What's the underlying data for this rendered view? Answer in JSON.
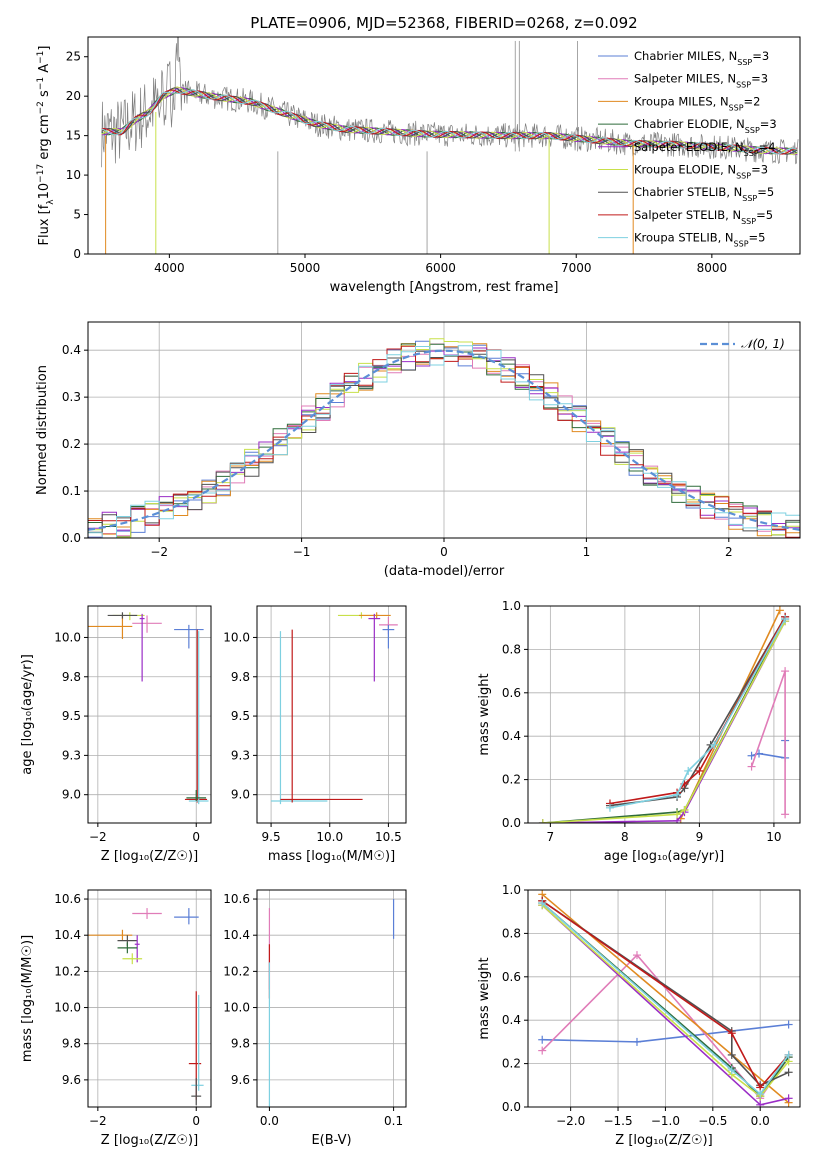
{
  "figure_title": "PLATE=0906, MJD=52368, FIBERID=0268, z=0.092",
  "colors": {
    "Chabrier MILES": "#5b7fd6",
    "Salpeter MILES": "#e07cb8",
    "Kroupa MILES": "#e08a20",
    "Chabrier ELODIE": "#2e6b3a",
    "Salpeter ELODIE": "#9a2dc6",
    "Kroupa ELODIE": "#c8e04a",
    "Chabrier STELIB": "#505050",
    "Salpeter STELIB": "#c01a1a",
    "Kroupa STELIB": "#7ed0e0",
    "normal": "#5b8fd6",
    "grid": "#b0b0b0"
  },
  "legend_spectrum": [
    {
      "name": "Chabrier MILES",
      "label": "Chabrier MILES, N",
      "n": "3"
    },
    {
      "name": "Salpeter MILES",
      "label": "Salpeter MILES, N",
      "n": "3"
    },
    {
      "name": "Kroupa MILES",
      "label": "Kroupa MILES, N",
      "n": "2"
    },
    {
      "name": "Chabrier ELODIE",
      "label": "Chabrier ELODIE, N",
      "n": "3"
    },
    {
      "name": "Salpeter ELODIE",
      "label": "Salpeter ELODIE, N",
      "n": "4"
    },
    {
      "name": "Kroupa ELODIE",
      "label": "Kroupa ELODIE, N",
      "n": "3"
    },
    {
      "name": "Chabrier STELIB",
      "label": "Chabrier STELIB, N",
      "n": "5"
    },
    {
      "name": "Salpeter STELIB",
      "label": "Salpeter STELIB, N",
      "n": "5"
    },
    {
      "name": "Kroupa STELIB",
      "label": "Kroupa STELIB, N",
      "n": "5"
    }
  ],
  "legend_ssp_sub": "SSP",
  "legend_residual": "𝒩(0, 1)",
  "chart_data": [
    {
      "id": "spectrum",
      "type": "line",
      "xlabel": "wavelength [Angstrom, rest frame]",
      "ylabel_parts": [
        "Flux [f",
        "λ",
        "10",
        "−17",
        " erg cm",
        "−2",
        " s",
        "−1",
        " A",
        "−1",
        "]"
      ],
      "xlim": [
        3400,
        8650
      ],
      "ylim": [
        0,
        27.5
      ],
      "xticks": [
        4000,
        5000,
        6000,
        7000,
        8000
      ],
      "yticks": [
        0,
        5,
        10,
        15,
        20,
        25
      ],
      "grid": false,
      "legend_position": "top-right",
      "continuum": [
        [
          3500,
          15.5
        ],
        [
          3650,
          15.5
        ],
        [
          3750,
          17
        ],
        [
          3850,
          18
        ],
        [
          3950,
          20
        ],
        [
          4050,
          20.8
        ],
        [
          4300,
          20
        ],
        [
          4600,
          19.3
        ],
        [
          4900,
          17.5
        ],
        [
          5100,
          16.4
        ],
        [
          5300,
          15.8
        ],
        [
          5600,
          15.5
        ],
        [
          5900,
          15.2
        ],
        [
          6200,
          15.1
        ],
        [
          6500,
          15.0
        ],
        [
          6800,
          15.0
        ],
        [
          7100,
          14.5
        ],
        [
          7400,
          14.0
        ],
        [
          7700,
          13.9
        ],
        [
          8100,
          13.5
        ],
        [
          8400,
          13.1
        ],
        [
          8650,
          13.0
        ]
      ]
    },
    {
      "id": "residuals",
      "type": "step",
      "xlabel": "(data-model)/error",
      "ylabel": "Normed distribution",
      "xlim": [
        -2.5,
        2.5
      ],
      "ylim": [
        0,
        0.46
      ],
      "xticks": [
        -2,
        -1,
        0,
        1,
        2
      ],
      "yticks": [
        0.0,
        0.1,
        0.2,
        0.3,
        0.4
      ],
      "grid": true,
      "legend_position": "top-right",
      "normal": {
        "mu": 0,
        "sigma": 1
      }
    },
    {
      "id": "age_vs_Z",
      "type": "errorbar",
      "xlabel": "Z [log₁₀(Z/Z☉)]",
      "ylabel": "age  [log₁₀(age/yr)]",
      "xlim": [
        -2.2,
        0.3
      ],
      "ylim": [
        8.82,
        10.2
      ],
      "xticks": [
        -2,
        0
      ],
      "yticks": [
        9.0,
        9.25,
        9.5,
        9.75,
        10.0
      ],
      "grid": true,
      "points": [
        {
          "s": "Kroupa MILES",
          "x": -1.5,
          "y": 10.07,
          "xe": [
            0.7,
            0.2
          ],
          "ye": [
            0.08,
            0.07
          ]
        },
        {
          "s": "Kroupa ELODIE",
          "x": -1.35,
          "y": 10.14,
          "xe": [
            0.35,
            0.3
          ],
          "ye": [
            0.03,
            0.02
          ]
        },
        {
          "s": "Chabrier STELIB",
          "x": -1.5,
          "y": 10.14,
          "xe": [
            0.3,
            0.3
          ],
          "ye": [
            0.02,
            0.02
          ]
        },
        {
          "s": "Salpeter MILES",
          "x": -1.0,
          "y": 10.09,
          "xe": [
            0.3,
            0.3
          ],
          "ye": [
            0.06,
            0.05
          ]
        },
        {
          "s": "Salpeter ELODIE",
          "x": -1.1,
          "y": 10.12,
          "xe": [
            0.05,
            0.05
          ],
          "ye": [
            0.4,
            0.03
          ]
        },
        {
          "s": "Chabrier MILES",
          "x": -0.15,
          "y": 10.05,
          "xe": [
            0.3,
            0.3
          ],
          "ye": [
            0.12,
            0.03
          ]
        },
        {
          "s": "Salpeter STELIB",
          "x": 0.02,
          "y": 8.97,
          "xe": [
            0.25,
            0.2
          ],
          "ye": [
            0.02,
            1.08
          ]
        },
        {
          "s": "Kroupa STELIB",
          "x": 0.05,
          "y": 8.96,
          "xe": [
            0.2,
            0.2
          ],
          "ye": [
            0.02,
            1.08
          ]
        },
        {
          "s": "Chabrier ELODIE",
          "x": 0.0,
          "y": 8.98,
          "xe": [
            0.2,
            0.2
          ],
          "ye": [
            0.02,
            0.05
          ]
        }
      ]
    },
    {
      "id": "age_vs_mass",
      "type": "errorbar",
      "xlabel": "mass [log₁₀(M/M☉)]",
      "ylabel": "",
      "xlim": [
        9.38,
        10.65
      ],
      "ylim": [
        8.82,
        10.2
      ],
      "xticks": [
        9.5,
        10.0,
        10.5
      ],
      "yticks": [
        9.0,
        9.25,
        9.5,
        9.75,
        10.0
      ],
      "grid": true,
      "points": [
        {
          "s": "Kroupa STELIB",
          "x": 9.58,
          "y": 8.96,
          "xe": [
            0.08,
            0.4
          ],
          "ye": [
            0.02,
            1.08
          ]
        },
        {
          "s": "Salpeter STELIB",
          "x": 9.68,
          "y": 8.97,
          "xe": [
            0.1,
            0.6
          ],
          "ye": [
            0.02,
            1.08
          ]
        },
        {
          "s": "Kroupa ELODIE",
          "x": 10.27,
          "y": 10.14,
          "xe": [
            0.2,
            0.15
          ],
          "ye": [
            0.02,
            0.02
          ]
        },
        {
          "s": "Kroupa MILES",
          "x": 10.4,
          "y": 10.14,
          "xe": [
            0.15,
            0.12
          ],
          "ye": [
            0.02,
            0.02
          ]
        },
        {
          "s": "Salpeter ELODIE",
          "x": 10.38,
          "y": 10.12,
          "xe": [
            0.05,
            0.05
          ],
          "ye": [
            0.4,
            0.03
          ]
        },
        {
          "s": "Salpeter MILES",
          "x": 10.5,
          "y": 10.08,
          "xe": [
            0.08,
            0.08
          ],
          "ye": [
            0.06,
            0.05
          ]
        },
        {
          "s": "Chabrier MILES",
          "x": 10.5,
          "y": 10.05,
          "xe": [
            0.05,
            0.05
          ],
          "ye": [
            0.12,
            0.03
          ]
        }
      ]
    },
    {
      "id": "mass_weight_vs_age",
      "type": "line",
      "xlabel": "age  [log₁₀(age/yr)]",
      "ylabel": "mass weight",
      "xlim": [
        6.7,
        10.35
      ],
      "ylim": [
        0,
        1.0
      ],
      "xticks": [
        7,
        8,
        9,
        10
      ],
      "yticks": [
        0.0,
        0.2,
        0.4,
        0.6,
        0.8,
        1.0
      ],
      "grid": true,
      "series": [
        {
          "s": "Chabrier MILES",
          "x": [
            9.7,
            9.8,
            10.15,
            10.15
          ],
          "y": [
            0.31,
            0.32,
            0.3,
            0.38
          ]
        },
        {
          "s": "Salpeter MILES",
          "x": [
            9.7,
            10.15,
            10.15
          ],
          "y": [
            0.26,
            0.7,
            0.04
          ]
        },
        {
          "s": "Kroupa MILES",
          "x": [
            8.75,
            10.08
          ],
          "y": [
            0.02,
            0.98
          ]
        },
        {
          "s": "Chabrier ELODIE",
          "x": [
            6.9,
            8.7,
            8.8,
            10.15
          ],
          "y": [
            0.0,
            0.05,
            0.06,
            0.94
          ]
        },
        {
          "s": "Salpeter ELODIE",
          "x": [
            6.9,
            8.7,
            8.8,
            10.15
          ],
          "y": [
            0.0,
            0.01,
            0.05,
            0.93
          ]
        },
        {
          "s": "Kroupa ELODIE",
          "x": [
            6.9,
            8.7,
            8.8,
            10.15
          ],
          "y": [
            0.0,
            0.04,
            0.06,
            0.93
          ]
        },
        {
          "s": "Chabrier STELIB",
          "x": [
            7.8,
            8.7,
            8.8,
            9.15,
            10.15
          ],
          "y": [
            0.08,
            0.12,
            0.16,
            0.36,
            0.95
          ]
        },
        {
          "s": "Salpeter STELIB",
          "x": [
            7.8,
            8.7,
            8.8,
            9.0,
            10.15
          ],
          "y": [
            0.09,
            0.14,
            0.18,
            0.24,
            0.95
          ]
        },
        {
          "s": "Kroupa STELIB",
          "x": [
            7.8,
            8.7,
            8.85,
            9.2,
            10.15
          ],
          "y": [
            0.07,
            0.13,
            0.24,
            0.36,
            0.94
          ]
        }
      ]
    },
    {
      "id": "mass_vs_Z",
      "type": "errorbar",
      "xlabel": "Z [log₁₀(Z/Z☉)]",
      "ylabel": "mass [log₁₀(M/M☉)]",
      "xlim": [
        -2.2,
        0.3
      ],
      "ylim": [
        9.45,
        10.65
      ],
      "xticks": [
        -2,
        0
      ],
      "yticks": [
        9.6,
        9.8,
        10.0,
        10.2,
        10.4,
        10.6
      ],
      "grid": true,
      "points": [
        {
          "s": "Kroupa MILES",
          "x": -1.5,
          "y": 10.4,
          "xe": [
            0.7,
            0.2
          ],
          "ye": [
            0.03,
            0.03
          ]
        },
        {
          "s": "Salpeter MILES",
          "x": -1.0,
          "y": 10.52,
          "xe": [
            0.3,
            0.3
          ],
          "ye": [
            0.03,
            0.03
          ]
        },
        {
          "s": "Chabrier MILES",
          "x": -0.15,
          "y": 10.5,
          "xe": [
            0.3,
            0.2
          ],
          "ye": [
            0.04,
            0.05
          ]
        },
        {
          "s": "Chabrier STELIB",
          "x": -1.4,
          "y": 10.37,
          "xe": [
            0.2,
            0.2
          ],
          "ye": [
            0.03,
            0.03
          ]
        },
        {
          "s": "Salpeter ELODIE",
          "x": -1.2,
          "y": 10.35,
          "xe": [
            0.05,
            0.05
          ],
          "ye": [
            0.1,
            0.05
          ]
        },
        {
          "s": "Chabrier ELODIE",
          "x": -1.4,
          "y": 10.33,
          "xe": [
            0.2,
            0.2
          ],
          "ye": [
            0.03,
            0.03
          ]
        },
        {
          "s": "Kroupa ELODIE",
          "x": -1.3,
          "y": 10.27,
          "xe": [
            0.2,
            0.2
          ],
          "ye": [
            0.03,
            0.03
          ]
        },
        {
          "s": "Salpeter STELIB",
          "x": 0.0,
          "y": 9.69,
          "xe": [
            0.15,
            0.1
          ],
          "ye": [
            0.2,
            0.4
          ]
        },
        {
          "s": "Kroupa STELIB",
          "x": 0.05,
          "y": 9.57,
          "xe": [
            0.15,
            0.1
          ],
          "ye": [
            0.03,
            0.5
          ]
        },
        {
          "s": "Chabrier STELIB",
          "x": 0.0,
          "y": 9.51,
          "xe": [
            0.1,
            0.1
          ],
          "ye": [
            0.05,
            0.1
          ]
        }
      ]
    },
    {
      "id": "mass_vs_ebv",
      "type": "errorbar",
      "xlabel": "E(B-V)",
      "ylabel": "",
      "xlim": [
        -0.01,
        0.11
      ],
      "ylim": [
        9.45,
        10.65
      ],
      "xticks": [
        0.0,
        0.1
      ],
      "yticks": [
        9.6,
        9.8,
        10.0,
        10.2,
        10.4,
        10.6
      ],
      "grid": true,
      "points": [
        {
          "s": "Salpeter MILES",
          "x": 0.0,
          "y": 10.3,
          "xe": [
            0,
            0
          ],
          "ye": [
            0.2,
            0.25
          ]
        },
        {
          "s": "Salpeter STELIB",
          "x": 0.0,
          "y": 10.2,
          "xe": [
            0,
            0
          ],
          "ye": [
            0.15,
            0.15
          ]
        },
        {
          "s": "Kroupa STELIB",
          "x": 0.0,
          "y": 9.9,
          "xe": [
            0,
            0
          ],
          "ye": [
            0.45,
            0.35
          ]
        },
        {
          "s": "Chabrier MILES",
          "x": 0.1,
          "y": 10.5,
          "xe": [
            0,
            0
          ],
          "ye": [
            0.12,
            0.1
          ]
        }
      ]
    },
    {
      "id": "mass_weight_vs_Z",
      "type": "line",
      "xlabel": "Z [log₁₀(Z/Z☉)]",
      "ylabel": "mass weight",
      "xlim": [
        -2.45,
        0.42
      ],
      "ylim": [
        0,
        1.0
      ],
      "xticks": [
        -2.0,
        -1.5,
        -1.0,
        -0.5,
        0.0
      ],
      "yticks": [
        0.0,
        0.2,
        0.4,
        0.6,
        0.8,
        1.0
      ],
      "grid": true,
      "series": [
        {
          "s": "Chabrier MILES",
          "x": [
            -2.3,
            -1.3,
            0.3
          ],
          "y": [
            0.31,
            0.3,
            0.38
          ]
        },
        {
          "s": "Salpeter MILES",
          "x": [
            -2.3,
            -1.3,
            0.0,
            0.3
          ],
          "y": [
            0.26,
            0.7,
            0.04,
            0.23
          ]
        },
        {
          "s": "Kroupa MILES",
          "x": [
            -2.3,
            0.3
          ],
          "y": [
            0.98,
            0.02
          ]
        },
        {
          "s": "Chabrier ELODIE",
          "x": [
            -2.3,
            -0.3,
            0.0,
            0.3
          ],
          "y": [
            0.94,
            0.18,
            0.05,
            0.23
          ]
        },
        {
          "s": "Salpeter ELODIE",
          "x": [
            -2.3,
            0.0,
            0.3
          ],
          "y": [
            0.93,
            0.01,
            0.04
          ]
        },
        {
          "s": "Kroupa ELODIE",
          "x": [
            -2.3,
            -0.3,
            0.0,
            0.3
          ],
          "y": [
            0.93,
            0.15,
            0.05,
            0.21
          ]
        },
        {
          "s": "Chabrier STELIB",
          "x": [
            -2.3,
            -0.3,
            -0.3,
            0.0,
            0.3
          ],
          "y": [
            0.95,
            0.35,
            0.24,
            0.1,
            0.16
          ]
        },
        {
          "s": "Salpeter STELIB",
          "x": [
            -2.3,
            -0.3,
            0.0,
            0.3
          ],
          "y": [
            0.95,
            0.34,
            0.09,
            0.24
          ]
        },
        {
          "s": "Kroupa STELIB",
          "x": [
            -2.3,
            -0.3,
            0.0,
            0.3
          ],
          "y": [
            0.94,
            0.17,
            0.06,
            0.24
          ]
        }
      ]
    }
  ]
}
